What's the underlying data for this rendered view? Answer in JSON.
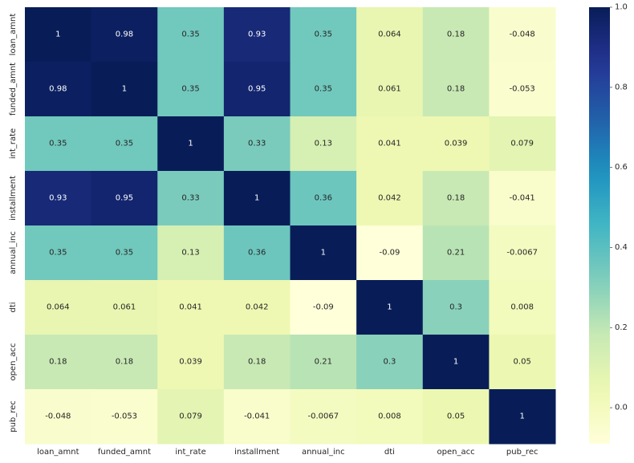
{
  "chart_data": {
    "type": "heatmap",
    "title": "",
    "xlabel": "",
    "ylabel": "",
    "x_labels": [
      "loan_amnt",
      "funded_amnt",
      "int_rate",
      "installment",
      "annual_inc",
      "dti",
      "open_acc",
      "pub_rec"
    ],
    "y_labels": [
      "loan_amnt",
      "funded_amnt",
      "int_rate",
      "installment",
      "annual_inc",
      "dti",
      "open_acc",
      "pub_rec"
    ],
    "values": [
      [
        1,
        0.98,
        0.35,
        0.93,
        0.35,
        0.064,
        0.18,
        -0.048
      ],
      [
        0.98,
        1,
        0.35,
        0.95,
        0.35,
        0.061,
        0.18,
        -0.053
      ],
      [
        0.35,
        0.35,
        1,
        0.33,
        0.13,
        0.041,
        0.039,
        0.079
      ],
      [
        0.93,
        0.95,
        0.33,
        1,
        0.36,
        0.042,
        0.18,
        -0.041
      ],
      [
        0.35,
        0.35,
        0.13,
        0.36,
        1,
        -0.09,
        0.21,
        -0.0067
      ],
      [
        0.064,
        0.061,
        0.041,
        0.042,
        -0.09,
        1,
        0.3,
        0.008
      ],
      [
        0.18,
        0.18,
        0.039,
        0.18,
        0.21,
        0.3,
        1,
        0.05
      ],
      [
        -0.048,
        -0.053,
        0.079,
        -0.041,
        -0.0067,
        0.008,
        0.05,
        1
      ]
    ],
    "annotations": [
      [
        "1",
        "0.98",
        "0.35",
        "0.93",
        "0.35",
        "0.064",
        "0.18",
        "-0.048"
      ],
      [
        "0.98",
        "1",
        "0.35",
        "0.95",
        "0.35",
        "0.061",
        "0.18",
        "-0.053"
      ],
      [
        "0.35",
        "0.35",
        "1",
        "0.33",
        "0.13",
        "0.041",
        "0.039",
        "0.079"
      ],
      [
        "0.93",
        "0.95",
        "0.33",
        "1",
        "0.36",
        "0.042",
        "0.18",
        "-0.041"
      ],
      [
        "0.35",
        "0.35",
        "0.13",
        "0.36",
        "1",
        "-0.09",
        "0.21",
        "-0.0067"
      ],
      [
        "0.064",
        "0.061",
        "0.041",
        "0.042",
        "-0.09",
        "1",
        "0.3",
        "0.008"
      ],
      [
        "0.18",
        "0.18",
        "0.039",
        "0.18",
        "0.21",
        "0.3",
        "1",
        "0.05"
      ],
      [
        "-0.048",
        "-0.053",
        "0.079",
        "-0.041",
        "-0.0067",
        "0.008",
        "0.05",
        "1"
      ]
    ],
    "colormap": "YlGnBu",
    "vmin": -0.09,
    "vmax": 1,
    "colorbar": {
      "ticks": [
        0.0,
        0.2,
        0.4,
        0.6,
        0.8,
        1.0
      ],
      "tick_labels": [
        "0.0",
        "0.2",
        "0.4",
        "0.6",
        "0.8",
        "1.0"
      ]
    }
  }
}
